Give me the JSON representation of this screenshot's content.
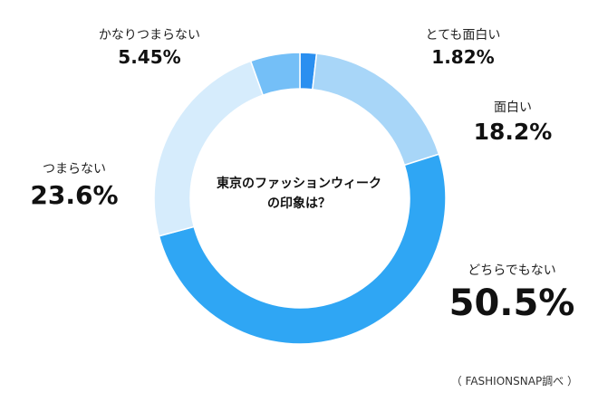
{
  "chart_data": {
    "type": "pie",
    "title": "東京のファッションウィークの印象は？",
    "title_lines": [
      "東京のファッションウィーク",
      "の印象は？"
    ],
    "categories": [
      "とても面白い",
      "面白い",
      "どちらでもない",
      "つまらない",
      "かなりつまらない"
    ],
    "values": [
      1.82,
      18.2,
      50.5,
      23.6,
      5.45
    ],
    "value_labels": [
      "1.82%",
      "18.2%",
      "50.5%",
      "23.6%",
      "5.45%"
    ],
    "colors": [
      "#2a8ff0",
      "#a8d6f8",
      "#2fa6f4",
      "#d6ecfc",
      "#74bff7"
    ],
    "legend": "none"
  },
  "source": "（ FASHIONSNAP調べ ）"
}
